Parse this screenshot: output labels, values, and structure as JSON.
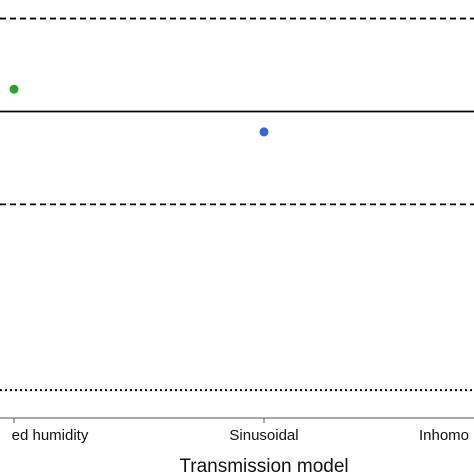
{
  "chart_data": {
    "type": "scatter",
    "xlabel": "Transmission model",
    "categories": [
      "ed humidity",
      "Sinusoidal",
      "Inhomo"
    ],
    "series": [
      {
        "category": "ed humidity",
        "y": 0.24,
        "color": "#2ca02c"
      },
      {
        "category": "Sinusoidal",
        "y": -0.22,
        "color": "#3366dd"
      }
    ],
    "reference_lines": [
      {
        "y": 1.0,
        "style": "dashed"
      },
      {
        "y": 0.0,
        "style": "solid"
      },
      {
        "y": -1.0,
        "style": "dashed"
      },
      {
        "y": -3.0,
        "style": "dotted"
      }
    ],
    "ylim": [
      -3.3,
      1.2
    ],
    "grid": false
  }
}
